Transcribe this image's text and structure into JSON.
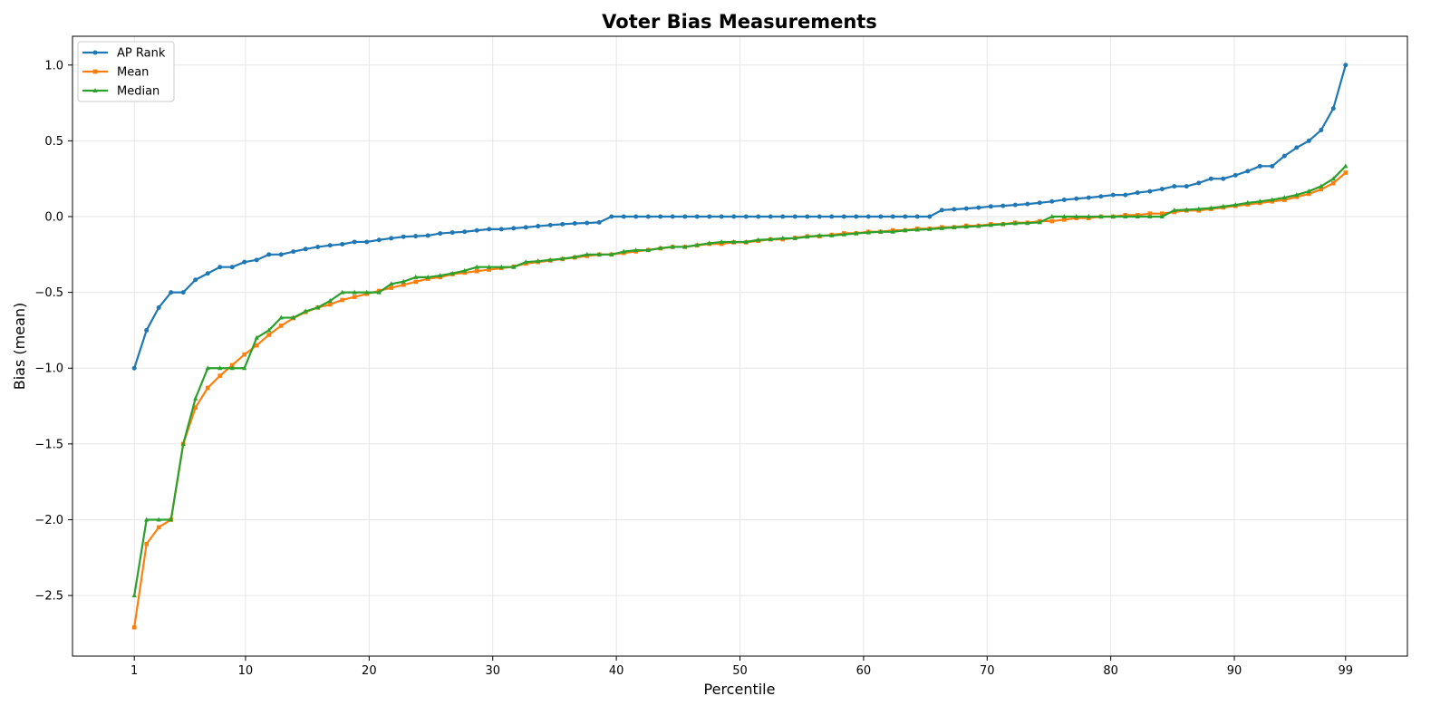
{
  "chart_data": {
    "type": "line",
    "title": "Voter Bias Measurements",
    "xlabel": "Percentile",
    "ylabel": "Bias (mean)",
    "xlim": [
      -4,
      104
    ],
    "ylim": [
      -2.9,
      1.19
    ],
    "x_ticks": [
      1,
      10,
      20,
      30,
      40,
      50,
      60,
      70,
      80,
      90,
      99
    ],
    "y_ticks": [
      -2.5,
      -2.0,
      -1.5,
      -1.0,
      -0.5,
      0.0,
      0.5,
      1.0
    ],
    "y_tick_labels": [
      "−2.5",
      "−2.0",
      "−1.5",
      "−1.0",
      "−0.5",
      "0.0",
      "0.5",
      "1.0"
    ],
    "grid": true,
    "legend_position": "top-left",
    "colors": {
      "ap_rank": "#1f77b4",
      "mean": "#ff7f0e",
      "median": "#2ca02c"
    },
    "x_start": 1,
    "x_end": 99,
    "series": [
      {
        "name": "AP Rank",
        "color": "#1f77b4",
        "marker": "circle",
        "values": [
          -1.0,
          -0.75,
          -0.6,
          -0.5,
          -0.5,
          -0.417,
          -0.375,
          -0.333,
          -0.333,
          -0.3,
          -0.286,
          -0.25,
          -0.25,
          -0.231,
          -0.214,
          -0.2,
          -0.19,
          -0.182,
          -0.167,
          -0.167,
          -0.154,
          -0.143,
          -0.133,
          -0.129,
          -0.125,
          -0.111,
          -0.105,
          -0.1,
          -0.091,
          -0.083,
          -0.083,
          -0.077,
          -0.071,
          -0.063,
          -0.056,
          -0.05,
          -0.045,
          -0.042,
          -0.038,
          0.0,
          0.0,
          0.0,
          0.0,
          0.0,
          0.0,
          0.0,
          0.0,
          0.0,
          0.0,
          0.0,
          0.0,
          0.0,
          0.0,
          0.0,
          0.0,
          0.0,
          0.0,
          0.0,
          0.0,
          0.0,
          0.0,
          0.0,
          0.0,
          0.0,
          0.0,
          0.0,
          0.043,
          0.048,
          0.053,
          0.059,
          0.067,
          0.071,
          0.077,
          0.083,
          0.091,
          0.1,
          0.111,
          0.118,
          0.125,
          0.133,
          0.143,
          0.143,
          0.158,
          0.167,
          0.182,
          0.2,
          0.2,
          0.222,
          0.25,
          0.25,
          0.273,
          0.3,
          0.333,
          0.333,
          0.4,
          0.455,
          0.5,
          0.571,
          0.714,
          1.0
        ]
      },
      {
        "name": "Mean",
        "color": "#ff7f0e",
        "marker": "square",
        "values": [
          -2.71,
          -2.16,
          -2.05,
          -2.0,
          -1.5,
          -1.26,
          -1.13,
          -1.05,
          -0.98,
          -0.91,
          -0.85,
          -0.78,
          -0.72,
          -0.67,
          -0.63,
          -0.6,
          -0.58,
          -0.55,
          -0.53,
          -0.51,
          -0.49,
          -0.47,
          -0.45,
          -0.43,
          -0.41,
          -0.4,
          -0.38,
          -0.37,
          -0.36,
          -0.35,
          -0.34,
          -0.33,
          -0.31,
          -0.3,
          -0.29,
          -0.28,
          -0.27,
          -0.26,
          -0.25,
          -0.25,
          -0.24,
          -0.23,
          -0.22,
          -0.21,
          -0.2,
          -0.2,
          -0.19,
          -0.18,
          -0.18,
          -0.17,
          -0.17,
          -0.16,
          -0.15,
          -0.15,
          -0.14,
          -0.13,
          -0.13,
          -0.12,
          -0.11,
          -0.11,
          -0.1,
          -0.1,
          -0.09,
          -0.09,
          -0.08,
          -0.08,
          -0.07,
          -0.07,
          -0.06,
          -0.06,
          -0.05,
          -0.05,
          -0.04,
          -0.04,
          -0.03,
          -0.03,
          -0.02,
          -0.01,
          -0.01,
          0.0,
          0.0,
          0.01,
          0.01,
          0.02,
          0.02,
          0.03,
          0.04,
          0.04,
          0.05,
          0.06,
          0.07,
          0.08,
          0.09,
          0.1,
          0.11,
          0.13,
          0.15,
          0.18,
          0.22,
          0.29
        ]
      },
      {
        "name": "Median",
        "color": "#2ca02c",
        "marker": "triangle",
        "values": [
          -2.5,
          -2.0,
          -2.0,
          -2.0,
          -1.5,
          -1.2,
          -1.0,
          -1.0,
          -1.0,
          -1.0,
          -0.8,
          -0.75,
          -0.667,
          -0.667,
          -0.625,
          -0.6,
          -0.556,
          -0.5,
          -0.5,
          -0.5,
          -0.5,
          -0.444,
          -0.429,
          -0.4,
          -0.4,
          -0.389,
          -0.375,
          -0.357,
          -0.333,
          -0.333,
          -0.333,
          -0.333,
          -0.3,
          -0.294,
          -0.286,
          -0.278,
          -0.267,
          -0.25,
          -0.25,
          -0.25,
          -0.231,
          -0.222,
          -0.222,
          -0.208,
          -0.2,
          -0.2,
          -0.188,
          -0.176,
          -0.167,
          -0.167,
          -0.167,
          -0.154,
          -0.15,
          -0.143,
          -0.143,
          -0.133,
          -0.125,
          -0.125,
          -0.118,
          -0.111,
          -0.105,
          -0.1,
          -0.1,
          -0.091,
          -0.087,
          -0.083,
          -0.077,
          -0.071,
          -0.067,
          -0.063,
          -0.056,
          -0.05,
          -0.045,
          -0.043,
          -0.038,
          0.0,
          0.0,
          0.0,
          0.0,
          0.0,
          0.0,
          0.0,
          0.0,
          0.0,
          0.0,
          0.042,
          0.045,
          0.05,
          0.056,
          0.067,
          0.077,
          0.091,
          0.1,
          0.111,
          0.125,
          0.143,
          0.167,
          0.2,
          0.25,
          0.333
        ]
      }
    ]
  }
}
